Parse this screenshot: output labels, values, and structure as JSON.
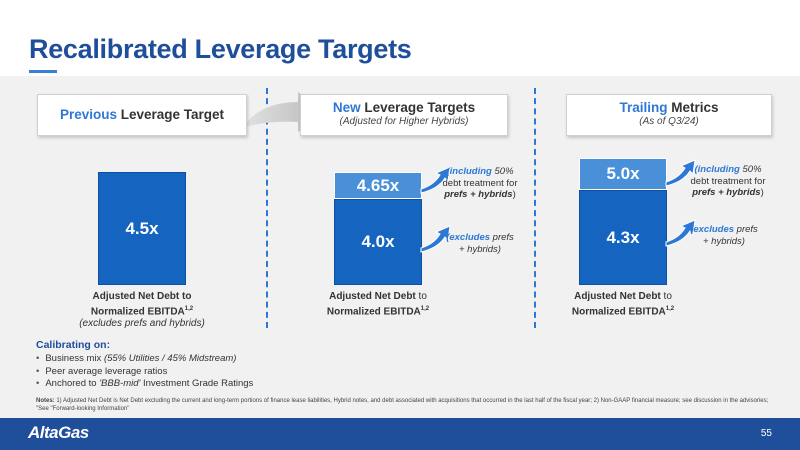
{
  "title": "Recalibrated Leverage Targets",
  "previous": {
    "header_accent": "Previous",
    "header_rest": " Leverage Target",
    "bar_value": "4.5x",
    "label_line1": "Adjusted Net Debt to",
    "label_line2": "Normalized EBITDA",
    "label_sup": "1,2",
    "label_note": "(excludes prefs and hybrids)"
  },
  "new": {
    "header_accent": "New",
    "header_rest": " Leverage Targets",
    "header_sub": "(Adjusted for Higher Hybrids)",
    "top_value": "4.65x",
    "base_value": "4.0x",
    "label_line1": "Adjusted Net Debt",
    "label_line1b": " to",
    "label_line2": "Normalized EBITDA",
    "label_sup": "1,2",
    "callout_top": {
      "accent": "(including",
      "rest1": " 50%",
      "rest2": "debt treatment for",
      "bold3": "prefs + hybrids",
      "end3": ")"
    },
    "callout_base": {
      "accent": "(excludes",
      "rest1": " prefs",
      "rest2": "+ hybrids)"
    }
  },
  "trailing": {
    "header_accent": "Trailing",
    "header_rest": " Metrics",
    "header_sub": "(As of Q3/24)",
    "top_value": "5.0x",
    "base_value": "4.3x",
    "label_line1": "Adjusted Net Debt",
    "label_line1b": " to",
    "label_line2": "Normalized EBITDA",
    "label_sup": "1,2",
    "callout_top": {
      "accent": "(including",
      "rest1": " 50%",
      "rest2": "debt treatment for",
      "bold3": "prefs + hybrids",
      "end3": ")"
    },
    "callout_base": {
      "accent": "(excludes",
      "rest1": " prefs",
      "rest2": "+ hybrids)"
    }
  },
  "calibrating": {
    "title": "Calibrating on:",
    "items": [
      {
        "pre": "Business mix ",
        "ital": "(55% Utilities / 45% Midstream)",
        "post": ""
      },
      {
        "pre": "Peer average leverage ratios",
        "ital": "",
        "post": ""
      },
      {
        "pre": "Anchored to ",
        "ital": "'BBB-mid'",
        "post": " Investment Grade Ratings"
      }
    ]
  },
  "notes": {
    "label": "Notes:",
    "text": " 1) Adjusted Net Debt is Net Debt excluding the current and long-term portions of finance lease liabilities, Hybrid notes, and debt associated with acquisitions that occurred in the last half of the fiscal year; 2) Non-GAAP financial measure; see discussion in the advisories; \"See \"Forward-looking Information\""
  },
  "footer": {
    "logo": "AltaGas",
    "page": "55"
  },
  "colors": {
    "primary": "#1f4e9a",
    "bar_dark": "#1565c0",
    "bar_light": "#4a90d9",
    "accent": "#2d78d4"
  }
}
